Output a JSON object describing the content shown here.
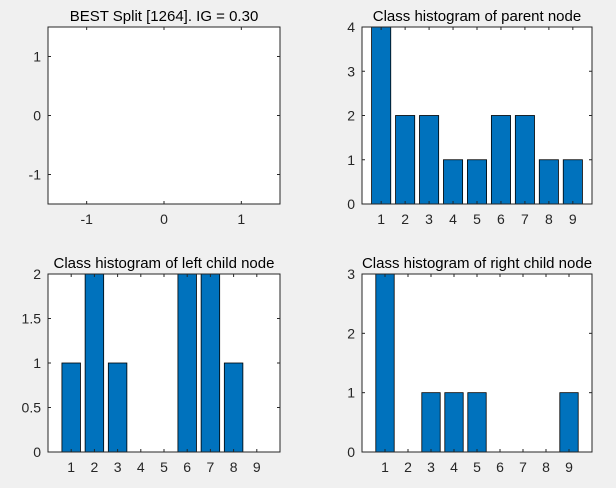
{
  "figure": {
    "background": "#f0f0f0",
    "axes_color": "#ffffff",
    "axis_line_color": "#262626",
    "bar_color": "#0072bd"
  },
  "chart_data": [
    {
      "type": "line",
      "title": "BEST Split [1264]. IG = 0.30",
      "xlabel": "",
      "ylabel": "",
      "xlim": [
        -1.5,
        1.5
      ],
      "ylim": [
        -1.5,
        1.5
      ],
      "xticks": [
        -1,
        0,
        1
      ],
      "yticks": [
        -1,
        0,
        1
      ],
      "xtick_labels": [
        "-1",
        "0",
        "1"
      ],
      "ytick_labels": [
        "-1",
        "0",
        "1"
      ],
      "series": []
    },
    {
      "type": "bar",
      "title": "Class histogram of parent node",
      "categories": [
        "1",
        "2",
        "3",
        "4",
        "5",
        "6",
        "7",
        "8",
        "9"
      ],
      "values": [
        4,
        2,
        2,
        1,
        1,
        2,
        2,
        1,
        1
      ],
      "xlim": [
        0.2,
        9.8
      ],
      "ylim": [
        0,
        4
      ],
      "yticks": [
        0,
        1,
        2,
        3,
        4
      ],
      "ytick_labels": [
        "0",
        "1",
        "2",
        "3",
        "4"
      ]
    },
    {
      "type": "bar",
      "title": "Class histogram of left child node",
      "categories": [
        "1",
        "2",
        "3",
        "4",
        "5",
        "6",
        "7",
        "8",
        "9"
      ],
      "values": [
        1,
        2,
        1,
        0,
        0,
        2,
        2,
        1,
        0
      ],
      "xlim": [
        0,
        10
      ],
      "ylim": [
        0,
        2
      ],
      "yticks": [
        0,
        0.5,
        1,
        1.5,
        2
      ],
      "ytick_labels": [
        "0",
        "0.5",
        "1",
        "1.5",
        "2"
      ]
    },
    {
      "type": "bar",
      "title": "Class histogram of right child node",
      "categories": [
        "1",
        "2",
        "3",
        "4",
        "5",
        "6",
        "7",
        "8",
        "9"
      ],
      "values": [
        3,
        0,
        1,
        1,
        1,
        0,
        0,
        0,
        1
      ],
      "xlim": [
        0,
        10
      ],
      "ylim": [
        0,
        3
      ],
      "yticks": [
        0,
        1,
        2,
        3
      ],
      "ytick_labels": [
        "0",
        "1",
        "2",
        "3"
      ]
    }
  ]
}
